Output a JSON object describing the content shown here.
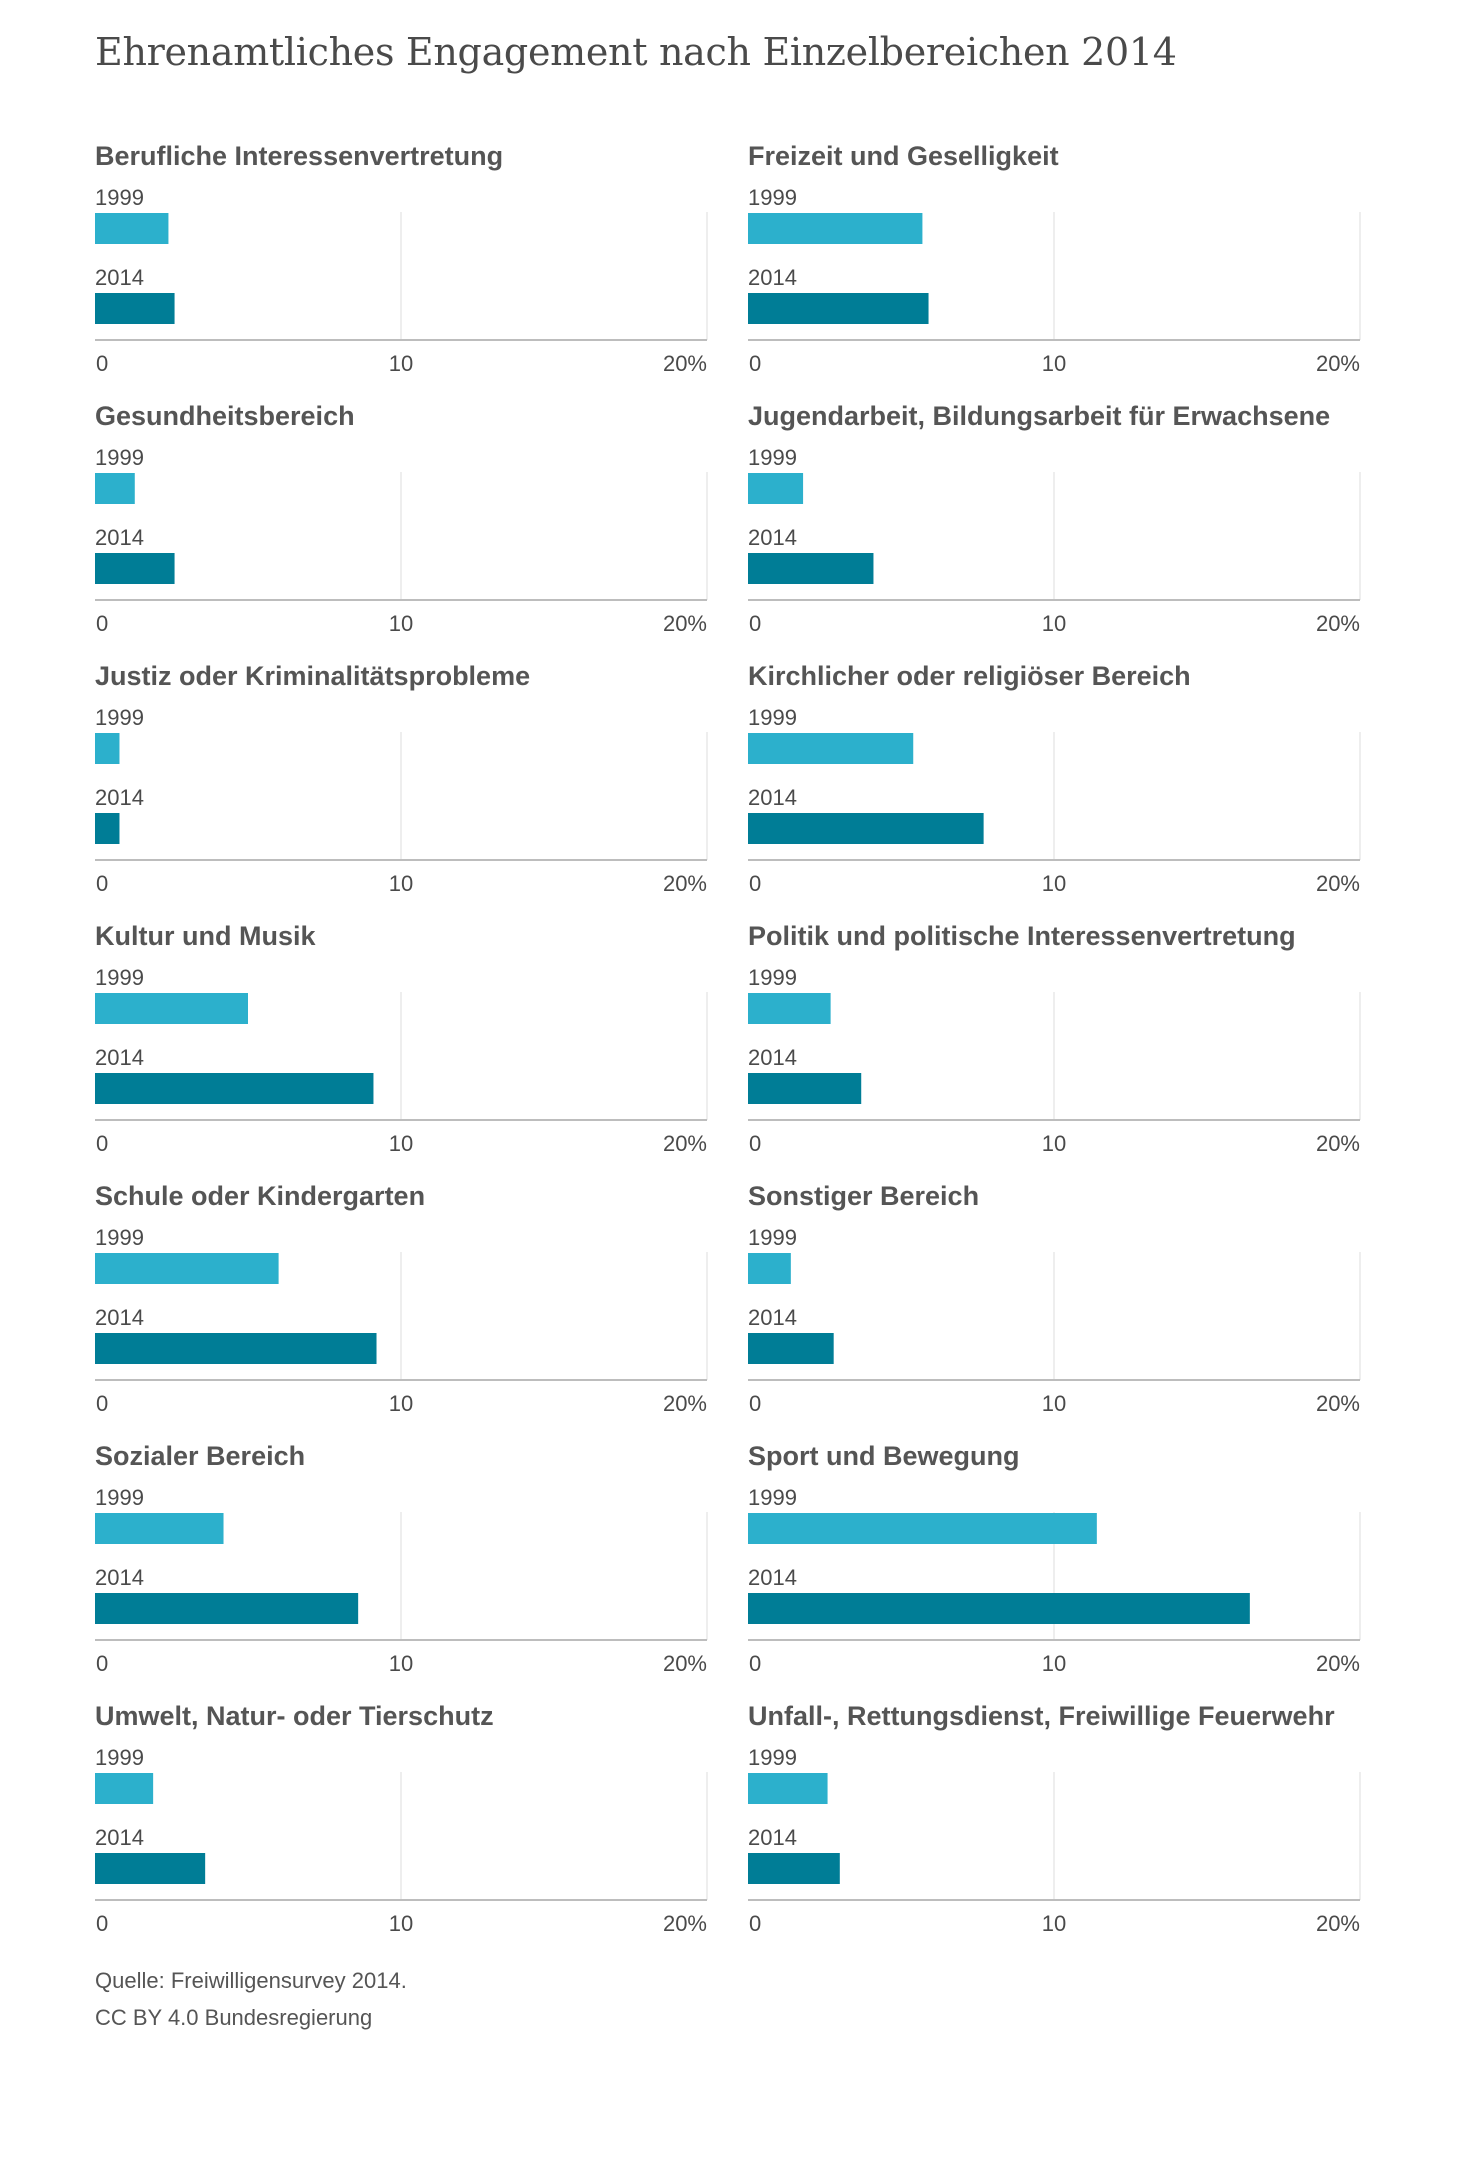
{
  "title": "Ehrenamtliches Engagement nach Einzelbereichen 2014",
  "footer": {
    "source": "Quelle: Freiwilligensurvey 2014.",
    "license": "CC BY 4.0 Bundesregierung"
  },
  "colors": {
    "series_1999": "#2cb0cc",
    "series_2014": "#007d96",
    "gridline": "#dcdcdc",
    "axis": "#bdbdbd",
    "text": "#555555"
  },
  "chart_data": {
    "type": "bar",
    "orientation": "horizontal",
    "layout": "small-multiples",
    "xlim": [
      0,
      20
    ],
    "ticks": [
      0,
      10,
      20
    ],
    "tick_labels": [
      "0",
      "10",
      "20%"
    ],
    "series_names": [
      "1999",
      "2014"
    ],
    "panels": [
      {
        "name": "Berufliche Interessenvertretung",
        "values": [
          2.4,
          2.6
        ]
      },
      {
        "name": "Freizeit und Geselligkeit",
        "values": [
          5.7,
          5.9
        ]
      },
      {
        "name": "Gesundheitsbereich",
        "values": [
          1.3,
          2.6
        ]
      },
      {
        "name": "Jugendarbeit, Bildungsarbeit für Erwachsene",
        "values": [
          1.8,
          4.1
        ]
      },
      {
        "name": "Justiz oder Kriminalitätsprobleme",
        "values": [
          0.8,
          0.8
        ]
      },
      {
        "name": "Kirchlicher oder religiöser Bereich",
        "values": [
          5.4,
          7.7
        ]
      },
      {
        "name": "Kultur und Musik",
        "values": [
          5.0,
          9.1
        ]
      },
      {
        "name": "Politik und politische Interessenvertretung",
        "values": [
          2.7,
          3.7
        ]
      },
      {
        "name": "Schule oder Kindergarten",
        "values": [
          6.0,
          9.2
        ]
      },
      {
        "name": "Sonstiger Bereich",
        "values": [
          1.4,
          2.8
        ]
      },
      {
        "name": "Sozialer Bereich",
        "values": [
          4.2,
          8.6
        ]
      },
      {
        "name": "Sport und Bewegung",
        "values": [
          11.4,
          16.4
        ]
      },
      {
        "name": "Umwelt, Natur- oder Tierschutz",
        "values": [
          1.9,
          3.6
        ]
      },
      {
        "name": "Unfall-, Rettungsdienst, Freiwillige Feuerwehr",
        "values": [
          2.6,
          3.0
        ]
      }
    ]
  }
}
